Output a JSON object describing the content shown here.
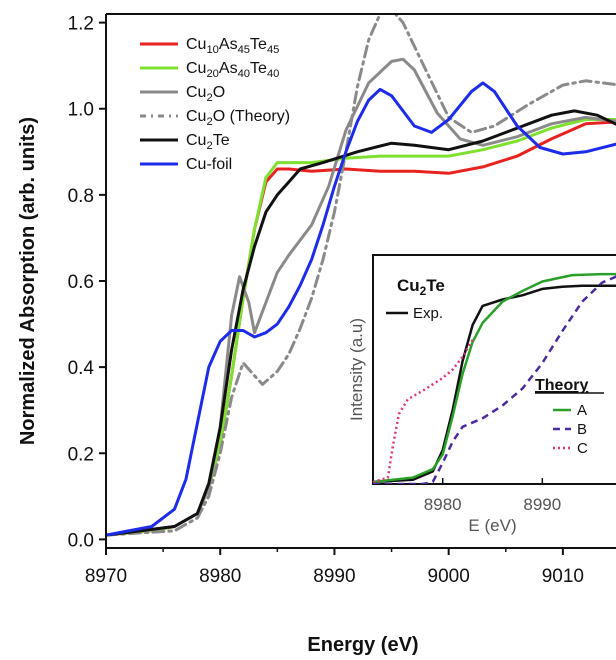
{
  "chart_data": {
    "type": "line",
    "xlabel": "Energy (eV)",
    "ylabel": "Normalized Absorption (arb. units)",
    "xlim": [
      8970,
      9015
    ],
    "ylim": [
      -0.02,
      1.22
    ],
    "xticks": [
      "8970",
      "8980",
      "8990",
      "9000",
      "9010"
    ],
    "yticks": [
      "0.0",
      "0.2",
      "0.4",
      "0.6",
      "0.8",
      "1.0",
      "1.2"
    ],
    "legend_position": "top-left",
    "series": [
      {
        "name": "Cu10As45Te45",
        "name_parts": [
          "Cu",
          "10",
          "As",
          "45",
          "Te",
          "45"
        ],
        "color": "#e8231f",
        "dash": "solid",
        "points": [
          [
            8970,
            0.01
          ],
          [
            8974,
            0.02
          ],
          [
            8976,
            0.03
          ],
          [
            8978,
            0.06
          ],
          [
            8979,
            0.12
          ],
          [
            8980,
            0.22
          ],
          [
            8981,
            0.38
          ],
          [
            8982,
            0.56
          ],
          [
            8983,
            0.72
          ],
          [
            8984,
            0.83
          ],
          [
            8985,
            0.86
          ],
          [
            8986,
            0.86
          ],
          [
            8988,
            0.855
          ],
          [
            8991,
            0.86
          ],
          [
            8994,
            0.855
          ],
          [
            8997,
            0.855
          ],
          [
            9000,
            0.85
          ],
          [
            9003,
            0.865
          ],
          [
            9006,
            0.89
          ],
          [
            9009,
            0.93
          ],
          [
            9012,
            0.965
          ],
          [
            9015,
            0.97
          ]
        ]
      },
      {
        "name": "Cu20As40Te40",
        "name_parts": [
          "Cu",
          "20",
          "As",
          "40",
          "Te",
          "40"
        ],
        "color": "#7ee02f",
        "dash": "solid",
        "points": [
          [
            8970,
            0.01
          ],
          [
            8974,
            0.02
          ],
          [
            8976,
            0.03
          ],
          [
            8978,
            0.06
          ],
          [
            8979,
            0.12
          ],
          [
            8980,
            0.22
          ],
          [
            8981,
            0.38
          ],
          [
            8982,
            0.56
          ],
          [
            8983,
            0.72
          ],
          [
            8984,
            0.84
          ],
          [
            8985,
            0.875
          ],
          [
            8986,
            0.875
          ],
          [
            8988,
            0.875
          ],
          [
            8991,
            0.885
          ],
          [
            8994,
            0.89
          ],
          [
            8997,
            0.89
          ],
          [
            9000,
            0.89
          ],
          [
            9003,
            0.905
          ],
          [
            9006,
            0.925
          ],
          [
            9009,
            0.955
          ],
          [
            9012,
            0.975
          ],
          [
            9015,
            0.975
          ]
        ]
      },
      {
        "name": "Cu2O",
        "name_parts": [
          "Cu",
          "2",
          "O"
        ],
        "color": "#8a8a8a",
        "dash": "solid",
        "points": [
          [
            8970,
            0.01
          ],
          [
            8976,
            0.03
          ],
          [
            8978,
            0.06
          ],
          [
            8979,
            0.12
          ],
          [
            8980,
            0.26
          ],
          [
            8981,
            0.52
          ],
          [
            8981.7,
            0.61
          ],
          [
            8982.5,
            0.55
          ],
          [
            8983,
            0.48
          ],
          [
            8984,
            0.55
          ],
          [
            8985,
            0.62
          ],
          [
            8986,
            0.66
          ],
          [
            8988,
            0.73
          ],
          [
            8989.5,
            0.82
          ],
          [
            8991,
            0.95
          ],
          [
            8993,
            1.06
          ],
          [
            8995,
            1.11
          ],
          [
            8996,
            1.115
          ],
          [
            8997,
            1.09
          ],
          [
            8999,
            0.99
          ],
          [
            9001,
            0.93
          ],
          [
            9003,
            0.915
          ],
          [
            9006,
            0.935
          ],
          [
            9009,
            0.965
          ],
          [
            9012,
            0.98
          ],
          [
            9015,
            0.97
          ]
        ]
      },
      {
        "name": "Cu2O (Theory)",
        "name_parts": [
          "Cu",
          "2",
          "O (Theory)"
        ],
        "color": "#8a8a8a",
        "dash": "dashdot",
        "points": [
          [
            8970,
            0.01
          ],
          [
            8976,
            0.02
          ],
          [
            8978,
            0.05
          ],
          [
            8979,
            0.1
          ],
          [
            8980,
            0.2
          ],
          [
            8981,
            0.33
          ],
          [
            8982,
            0.41
          ],
          [
            8983,
            0.38
          ],
          [
            8983.7,
            0.36
          ],
          [
            8985,
            0.39
          ],
          [
            8986,
            0.43
          ],
          [
            8987,
            0.49
          ],
          [
            8988,
            0.56
          ],
          [
            8989,
            0.65
          ],
          [
            8990,
            0.76
          ],
          [
            8991,
            0.9
          ],
          [
            8992,
            1.05
          ],
          [
            8993,
            1.16
          ],
          [
            8994,
            1.22
          ],
          [
            8995,
            1.23
          ],
          [
            8996,
            1.2
          ],
          [
            8998,
            1.09
          ],
          [
            9000,
            0.98
          ],
          [
            9002,
            0.945
          ],
          [
            9004,
            0.96
          ],
          [
            9007,
            1.01
          ],
          [
            9010,
            1.055
          ],
          [
            9012,
            1.065
          ],
          [
            9015,
            1.055
          ]
        ]
      },
      {
        "name": "Cu2Te",
        "name_parts": [
          "Cu",
          "2",
          "Te"
        ],
        "color": "#111111",
        "dash": "solid",
        "points": [
          [
            8970,
            0.01
          ],
          [
            8976,
            0.03
          ],
          [
            8978,
            0.06
          ],
          [
            8979,
            0.13
          ],
          [
            8980,
            0.26
          ],
          [
            8981,
            0.44
          ],
          [
            8982,
            0.58
          ],
          [
            8983,
            0.68
          ],
          [
            8984,
            0.76
          ],
          [
            8985,
            0.8
          ],
          [
            8986,
            0.83
          ],
          [
            8987,
            0.86
          ],
          [
            8989,
            0.875
          ],
          [
            8992,
            0.9
          ],
          [
            8995,
            0.92
          ],
          [
            8997,
            0.915
          ],
          [
            9000,
            0.905
          ],
          [
            9003,
            0.925
          ],
          [
            9006,
            0.955
          ],
          [
            9009,
            0.985
          ],
          [
            9011,
            0.995
          ],
          [
            9013,
            0.985
          ],
          [
            9015,
            0.96
          ]
        ]
      },
      {
        "name": "Cu-foil",
        "name_parts": [
          "Cu-foil"
        ],
        "color": "#1d2bea",
        "dash": "solid",
        "points": [
          [
            8970,
            0.01
          ],
          [
            8974,
            0.03
          ],
          [
            8976,
            0.07
          ],
          [
            8977,
            0.14
          ],
          [
            8978,
            0.27
          ],
          [
            8979,
            0.4
          ],
          [
            8980,
            0.46
          ],
          [
            8981,
            0.485
          ],
          [
            8982,
            0.485
          ],
          [
            8983,
            0.47
          ],
          [
            8984,
            0.48
          ],
          [
            8985,
            0.5
          ],
          [
            8986,
            0.54
          ],
          [
            8987,
            0.59
          ],
          [
            8988,
            0.65
          ],
          [
            8989,
            0.73
          ],
          [
            8990,
            0.82
          ],
          [
            8991,
            0.9
          ],
          [
            8992,
            0.97
          ],
          [
            8993,
            1.02
          ],
          [
            8994,
            1.045
          ],
          [
            8995,
            1.03
          ],
          [
            8997,
            0.96
          ],
          [
            8998.5,
            0.945
          ],
          [
            9000,
            0.975
          ],
          [
            9002,
            1.04
          ],
          [
            9003,
            1.06
          ],
          [
            9004,
            1.04
          ],
          [
            9006,
            0.96
          ],
          [
            9008,
            0.91
          ],
          [
            9010,
            0.895
          ],
          [
            9012,
            0.9
          ],
          [
            9015,
            0.92
          ]
        ]
      }
    ],
    "inset": {
      "title_parts": [
        "Cu",
        "2",
        "Te"
      ],
      "ylabel": "Intensity (a.u)",
      "xlabel": "E (eV)",
      "xlim": [
        8973,
        8998
      ],
      "ylim": [
        0,
        1.08
      ],
      "xticks": [
        "8980",
        "8990"
      ],
      "exp_label": "Exp.",
      "theory_title": "Theory",
      "series": [
        {
          "name": "Exp.",
          "color": "#111111",
          "dash": "solid",
          "points": [
            [
              8973,
              0.01
            ],
            [
              8977,
              0.02
            ],
            [
              8979,
              0.06
            ],
            [
              8980,
              0.16
            ],
            [
              8981,
              0.35
            ],
            [
              8982,
              0.58
            ],
            [
              8983,
              0.75
            ],
            [
              8984,
              0.84
            ],
            [
              8986,
              0.87
            ],
            [
              8988,
              0.89
            ],
            [
              8990,
              0.92
            ],
            [
              8992,
              0.93
            ],
            [
              8994,
              0.935
            ],
            [
              8998,
              0.935
            ]
          ]
        },
        {
          "name": "A",
          "color": "#2aa02a",
          "dash": "solid",
          "points": [
            [
              8973,
              0.01
            ],
            [
              8977,
              0.03
            ],
            [
              8979,
              0.07
            ],
            [
              8980,
              0.14
            ],
            [
              8981,
              0.32
            ],
            [
              8982,
              0.52
            ],
            [
              8983,
              0.67
            ],
            [
              8984,
              0.76
            ],
            [
              8986,
              0.86
            ],
            [
              8988,
              0.91
            ],
            [
              8990,
              0.955
            ],
            [
              8993,
              0.985
            ],
            [
              8996,
              0.99
            ],
            [
              8998,
              0.99
            ]
          ]
        },
        {
          "name": "B",
          "color": "#4b2a9e",
          "dash": "dash",
          "points": [
            [
              8973,
              0.0
            ],
            [
              8978,
              0.0
            ],
            [
              8979,
              0.01
            ],
            [
              8980,
              0.1
            ],
            [
              8981,
              0.2
            ],
            [
              8982,
              0.27
            ],
            [
              8984,
              0.31
            ],
            [
              8986,
              0.37
            ],
            [
              8988,
              0.45
            ],
            [
              8990,
              0.57
            ],
            [
              8992,
              0.72
            ],
            [
              8994,
              0.86
            ],
            [
              8996,
              0.95
            ],
            [
              8998,
              0.99
            ]
          ]
        },
        {
          "name": "C",
          "color": "#e0347a",
          "dash": "dot",
          "points": [
            [
              8973,
              0.01
            ],
            [
              8974.5,
              0.03
            ],
            [
              8975,
              0.18
            ],
            [
              8975.6,
              0.33
            ],
            [
              8976.5,
              0.4
            ],
            [
              8978,
              0.44
            ],
            [
              8979,
              0.47
            ],
            [
              8980,
              0.5
            ],
            [
              8981,
              0.54
            ],
            [
              8982,
              0.6
            ],
            [
              8983,
              0.68
            ]
          ]
        }
      ]
    }
  }
}
